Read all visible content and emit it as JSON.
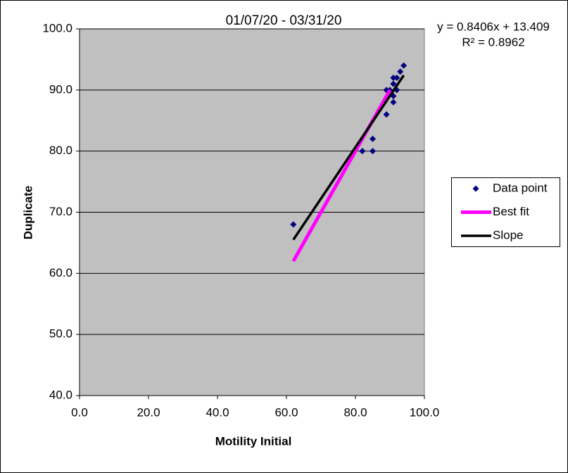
{
  "chart_data": {
    "type": "scatter",
    "title": "01/07/20 - 03/31/20",
    "x_label": "Motility Initial",
    "y_label": "Duplicate",
    "annotations": [
      "y = 0.8406x + 13.409",
      "R² = 0.8962"
    ],
    "xlim": [
      0,
      100
    ],
    "xticks": [
      {
        "value": 0,
        "label": "0.0"
      },
      {
        "value": 20,
        "label": "20.0"
      },
      {
        "value": 40,
        "label": "40.0"
      },
      {
        "value": 60,
        "label": "60.0"
      },
      {
        "value": 80,
        "label": "80.0"
      },
      {
        "value": 100,
        "label": "100.0"
      }
    ],
    "ylim": [
      40,
      100
    ],
    "yticks": [
      {
        "value": 40,
        "label": "40.0"
      },
      {
        "value": 50,
        "label": "50.0"
      },
      {
        "value": 60,
        "label": "60.0"
      },
      {
        "value": 70,
        "label": "70.0"
      },
      {
        "value": 80,
        "label": "80.0"
      },
      {
        "value": 90,
        "label": "90.0"
      },
      {
        "value": 100,
        "label": "100.0"
      }
    ],
    "grid": true,
    "legend": "right",
    "series": [
      {
        "name": "Data point",
        "color": "#000080",
        "mode": "markers",
        "x": [
          62,
          82,
          85,
          85,
          89,
          89,
          90,
          91,
          91,
          91,
          91,
          92,
          92,
          93,
          94
        ],
        "values": [
          68,
          80,
          80,
          82,
          86,
          90,
          90,
          92,
          91,
          89,
          88,
          90,
          92,
          93,
          94
        ]
      },
      {
        "name": "Best fit",
        "color": "#ff00ff",
        "mode": "lines",
        "x": [
          62,
          90
        ],
        "values": [
          62,
          90
        ]
      },
      {
        "name": "Slope",
        "color": "#000000",
        "mode": "lines",
        "x": [
          62,
          94
        ],
        "values": [
          65.5,
          92.4
        ]
      }
    ]
  }
}
